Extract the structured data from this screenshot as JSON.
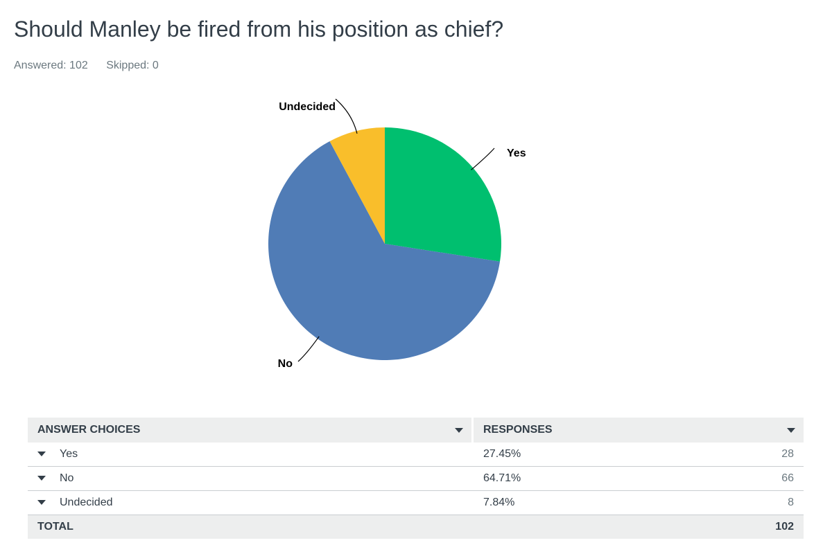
{
  "header": {
    "title": "Should Manley be fired from his position as chief?",
    "answered": "Answered: 102",
    "skipped": "Skipped: 0"
  },
  "chart_data": {
    "type": "pie",
    "slices": [
      {
        "label": "Yes",
        "value": 27.45,
        "color": "#00bf6f"
      },
      {
        "label": "No",
        "value": 64.71,
        "color": "#507cb6"
      },
      {
        "label": "Undecided",
        "value": 7.84,
        "color": "#f9be2b"
      }
    ],
    "start": "12 o'clock",
    "direction": "clockwise"
  },
  "table": {
    "headers": {
      "choices": "ANSWER CHOICES",
      "responses": "RESPONSES"
    },
    "rows": [
      {
        "choice": "Yes",
        "percent": "27.45%",
        "count": "28"
      },
      {
        "choice": "No",
        "percent": "64.71%",
        "count": "66"
      },
      {
        "choice": "Undecided",
        "percent": "7.84%",
        "count": "8"
      }
    ],
    "total": {
      "label": "TOTAL",
      "count": "102"
    }
  }
}
